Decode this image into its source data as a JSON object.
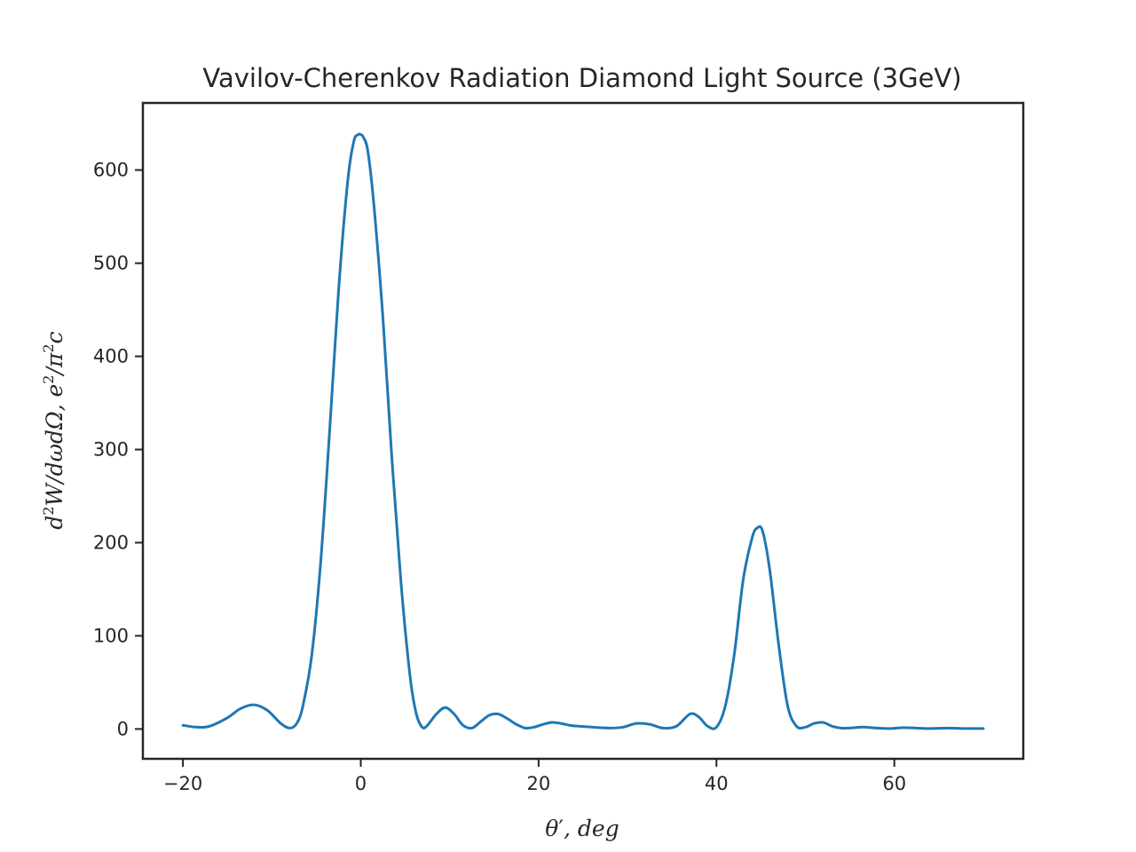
{
  "chart_data": {
    "type": "line",
    "title": "Vavilov-Cherenkov Radiation Diamond Light Source (3GeV)",
    "xlabel": {
      "theta": "θ",
      "prime": "′",
      "rest": ", deg"
    },
    "ylabel": {
      "d": "d",
      "two_a": "2",
      "mid": "W/dωdΩ, e",
      "two_b": "2",
      "slash_pi": "/π",
      "two_c": "2",
      "c": "c"
    },
    "xlim": [
      -24.5,
      74.5
    ],
    "ylim": [
      -32,
      672
    ],
    "x_ticks": [
      {
        "value": -20,
        "label": "−20"
      },
      {
        "value": 0,
        "label": "0"
      },
      {
        "value": 20,
        "label": "20"
      },
      {
        "value": 40,
        "label": "40"
      },
      {
        "value": 60,
        "label": "60"
      }
    ],
    "y_ticks": [
      {
        "value": 0,
        "label": "0"
      },
      {
        "value": 100,
        "label": "100"
      },
      {
        "value": 200,
        "label": "200"
      },
      {
        "value": 300,
        "label": "300"
      },
      {
        "value": 400,
        "label": "400"
      },
      {
        "value": 500,
        "label": "500"
      },
      {
        "value": 600,
        "label": "600"
      }
    ],
    "grid": false,
    "series": [
      {
        "color": "#1f77b4",
        "x": [
          -20,
          -18.5,
          -17,
          -15,
          -13.5,
          -12,
          -10.5,
          -9,
          -8,
          -7.2,
          -6.5,
          -5.5,
          -4.5,
          -3.5,
          -2.5,
          -1.5,
          -0.8,
          -0.3,
          0,
          0.3,
          0.8,
          1.5,
          2.5,
          3.5,
          4.5,
          5.5,
          6.2,
          6.9,
          7.5,
          8.5,
          9.5,
          10.5,
          11.5,
          12.5,
          13.5,
          14.5,
          15.5,
          16.5,
          17.5,
          18.5,
          19.5,
          20.5,
          21.5,
          22.5,
          23.5,
          24.5,
          26,
          28,
          29.5,
          31,
          32.5,
          34,
          35.5,
          37,
          38,
          39,
          40,
          41,
          42,
          43,
          44,
          44.6,
          45.2,
          46,
          47,
          48,
          49,
          50,
          51,
          52,
          53,
          54,
          55,
          56.5,
          58,
          59.5,
          61,
          62.5,
          64,
          66,
          68,
          70
        ],
        "y": [
          4,
          2,
          3,
          12,
          22,
          26,
          20,
          6,
          1,
          6,
          25,
          80,
          180,
          320,
          470,
          585,
          630,
          638,
          638,
          635,
          620,
          560,
          440,
          290,
          160,
          60,
          18,
          2,
          4,
          16,
          23,
          16,
          4,
          1,
          8,
          15,
          16,
          11,
          5,
          1,
          2,
          5,
          7,
          6,
          4,
          3,
          2,
          1,
          2,
          6,
          5,
          1,
          3,
          16,
          13,
          3,
          2,
          25,
          80,
          160,
          205,
          216,
          212,
          170,
          90,
          25,
          3,
          2,
          6,
          7,
          3,
          1,
          1,
          2,
          1,
          0.5,
          1.5,
          1,
          0.5,
          1,
          0.5,
          0.5
        ]
      }
    ]
  }
}
